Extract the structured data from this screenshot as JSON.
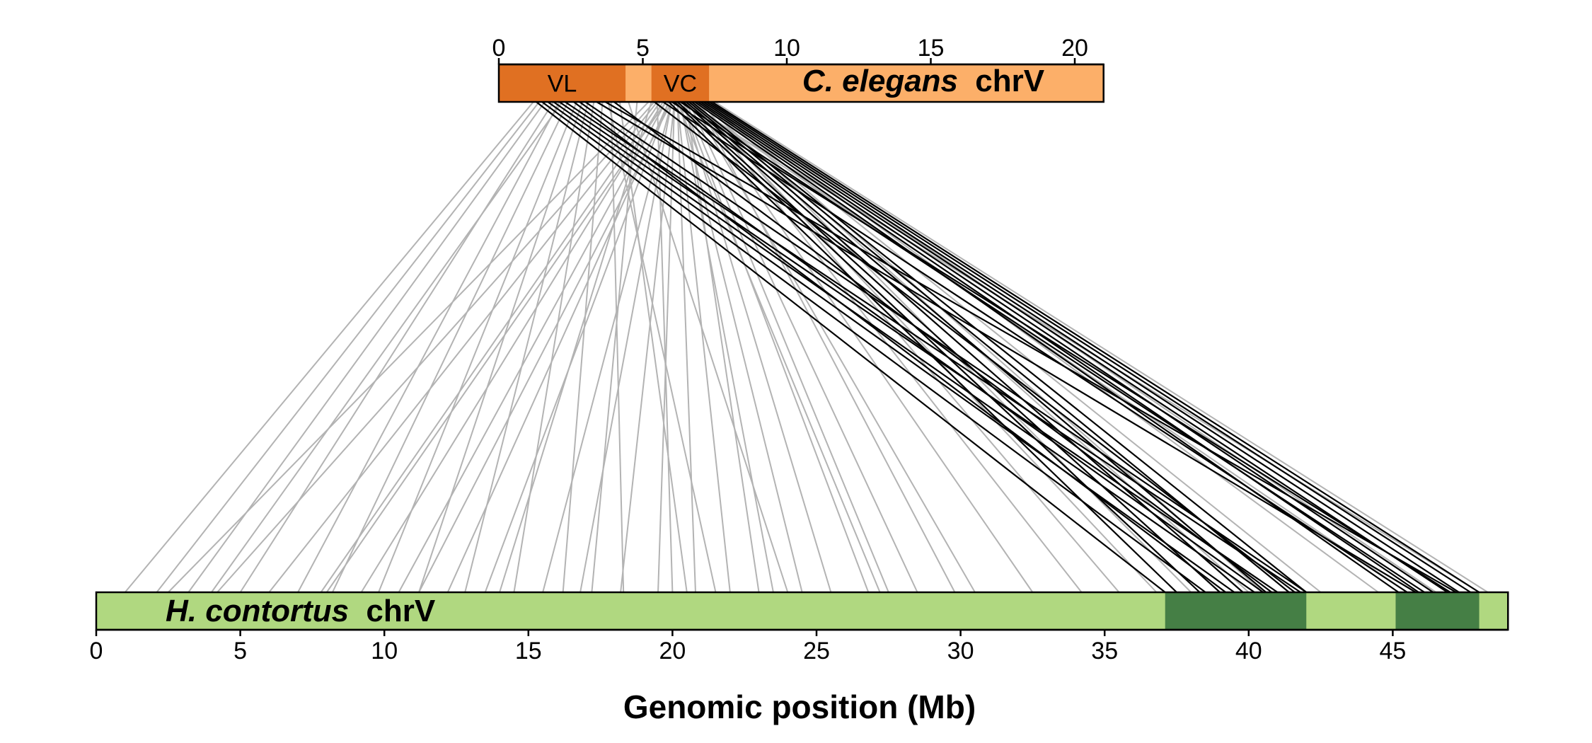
{
  "figure": {
    "xlabel": "Genomic position (Mb)"
  },
  "chromosomes": {
    "top": {
      "species": "C. elegans",
      "chrom": "chrV",
      "length_mb": 21,
      "axis_ticks": [
        0,
        5,
        10,
        15,
        20
      ],
      "base_color": "#fcaf69",
      "regions": [
        {
          "label": "VL",
          "start": 0,
          "end": 4.4,
          "color": "#e07022"
        },
        {
          "label": "VC",
          "start": 5.3,
          "end": 7.3,
          "color": "#e07022"
        }
      ]
    },
    "bottom": {
      "species": "H. contortus",
      "chrom": "chrV",
      "length_mb": 49,
      "axis_ticks": [
        0,
        5,
        10,
        15,
        20,
        25,
        30,
        35,
        40,
        45
      ],
      "base_color": "#b0d880",
      "regions": [
        {
          "label": "",
          "start": 37.1,
          "end": 42.0,
          "color": "#457f45"
        },
        {
          "label": "",
          "start": 45.1,
          "end": 48.0,
          "color": "#457f45"
        }
      ]
    }
  },
  "chart_data": {
    "type": "synteny",
    "xlabel": "Genomic position (Mb)",
    "series": [
      {
        "color": "#b3b3b3",
        "links": [
          [
            1.2,
            1.0
          ],
          [
            1.4,
            2.1
          ],
          [
            1.6,
            3.2
          ],
          [
            1.9,
            5.0
          ],
          [
            2.1,
            7.0
          ],
          [
            2.4,
            8.2
          ],
          [
            2.7,
            9.8
          ],
          [
            2.9,
            11.2
          ],
          [
            3.1,
            12.8
          ],
          [
            3.3,
            14.5
          ],
          [
            3.6,
            16.2
          ],
          [
            3.9,
            18.3
          ],
          [
            4.2,
            20.5
          ],
          [
            5.2,
            2.5
          ],
          [
            5.4,
            4.2
          ],
          [
            5.5,
            6.0
          ],
          [
            5.6,
            7.8
          ],
          [
            5.7,
            9.2
          ],
          [
            5.8,
            10.5
          ],
          [
            5.9,
            12.2
          ],
          [
            5.9,
            13.5
          ],
          [
            6.0,
            15.5
          ],
          [
            6.0,
            16.8
          ],
          [
            6.1,
            18.2
          ],
          [
            6.1,
            19.5
          ],
          [
            6.2,
            20.8
          ],
          [
            6.2,
            22.0
          ],
          [
            6.3,
            23.5
          ],
          [
            6.3,
            24.5
          ],
          [
            6.4,
            25.5
          ],
          [
            6.4,
            26.8
          ],
          [
            6.5,
            27.5
          ],
          [
            6.6,
            28.5
          ],
          [
            6.7,
            30.5
          ],
          [
            6.8,
            32.5
          ],
          [
            6.9,
            34.2
          ],
          [
            7.0,
            35.5
          ],
          [
            7.1,
            38.0
          ],
          [
            7.2,
            40.5
          ],
          [
            7.2,
            42.5
          ],
          [
            7.3,
            44.5
          ],
          [
            7.4,
            46.5
          ],
          [
            7.5,
            48.3
          ],
          [
            6.0,
            11.2
          ],
          [
            5.8,
            8.0
          ],
          [
            6.2,
            27.2
          ],
          [
            6.5,
            23.0
          ],
          [
            5.3,
            14.0
          ],
          [
            4.8,
            17.2
          ],
          [
            3.8,
            21.5
          ],
          [
            4.5,
            24.0
          ],
          [
            6.8,
            36.8
          ],
          [
            7.0,
            40.0
          ],
          [
            6.6,
            45.5
          ],
          [
            6.4,
            48.0
          ],
          [
            2.2,
            4.0
          ],
          [
            6.9,
            29.8
          ],
          [
            5.5,
            20.0
          ]
        ]
      },
      {
        "color": "#000000",
        "links": [
          [
            1.3,
            37.1
          ],
          [
            1.5,
            38.5
          ],
          [
            1.7,
            39.5
          ],
          [
            1.9,
            40.2
          ],
          [
            2.1,
            41.0
          ],
          [
            2.3,
            41.8
          ],
          [
            2.6,
            39.2
          ],
          [
            2.8,
            40.5
          ],
          [
            3.0,
            42.0
          ],
          [
            5.9,
            37.5
          ],
          [
            6.1,
            38.3
          ],
          [
            6.2,
            39.0
          ],
          [
            6.4,
            39.8
          ],
          [
            6.5,
            40.6
          ],
          [
            6.6,
            41.4
          ],
          [
            6.7,
            42.0
          ],
          [
            6.8,
            45.2
          ],
          [
            6.9,
            45.9
          ],
          [
            7.0,
            46.4
          ],
          [
            7.1,
            46.9
          ],
          [
            7.2,
            47.3
          ],
          [
            7.3,
            47.7
          ],
          [
            7.4,
            48.0
          ],
          [
            6.3,
            46.1
          ],
          [
            6.0,
            47.0
          ],
          [
            5.7,
            45.5
          ],
          [
            3.4,
            45.8
          ],
          [
            3.7,
            47.2
          ],
          [
            4.0,
            40.8
          ],
          [
            5.4,
            41.6
          ]
        ]
      }
    ]
  }
}
